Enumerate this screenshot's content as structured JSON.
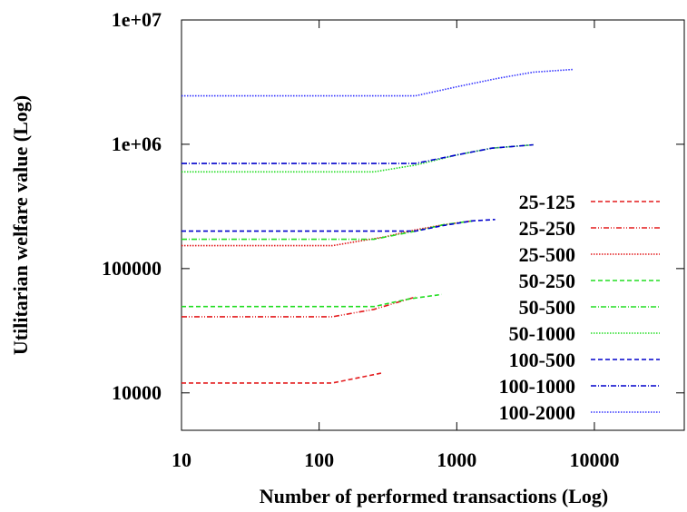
{
  "chart_data": {
    "type": "line",
    "title": "",
    "xlabel": "Number of performed transactions (Log)",
    "ylabel": "Utilitarian welfare value (Log)",
    "xscale": "log",
    "yscale": "log",
    "xlim": [
      10,
      45000
    ],
    "ylim": [
      5000,
      10000000
    ],
    "xticks": [
      10,
      100,
      1000,
      10000
    ],
    "xtick_labels": [
      "10",
      "100",
      "1000",
      "10000"
    ],
    "yticks": [
      10000,
      100000,
      1000000,
      10000000
    ],
    "ytick_labels": [
      "10000",
      "100000",
      "1e+06",
      "1e+07"
    ],
    "legend_position": "right",
    "grid": false,
    "series": [
      {
        "name": "25-125",
        "color": "#e31a1c",
        "dash": "5,3",
        "x": [
          10,
          125,
          290
        ],
        "y": [
          12000,
          12000,
          14500
        ]
      },
      {
        "name": "25-250",
        "color": "#e31a1c",
        "dash": "6,2,1,2,1,2",
        "x": [
          10,
          125,
          250,
          500
        ],
        "y": [
          41000,
          41000,
          47000,
          59000
        ]
      },
      {
        "name": "25-500",
        "color": "#e31a1c",
        "dash": "1.5,1.5",
        "x": [
          10,
          125,
          300,
          500,
          800,
          1300
        ],
        "y": [
          153000,
          153000,
          180000,
          205000,
          225000,
          242000
        ]
      },
      {
        "name": "50-250",
        "color": "#22dd22",
        "dash": "5,3",
        "x": [
          10,
          250,
          450,
          780
        ],
        "y": [
          49500,
          49500,
          57000,
          62000
        ]
      },
      {
        "name": "50-500",
        "color": "#22dd22",
        "dash": "6,2,1,2",
        "x": [
          10,
          250,
          500,
          800,
          1300
        ],
        "y": [
          172000,
          172000,
          200000,
          225000,
          242000
        ]
      },
      {
        "name": "50-1000",
        "color": "#22dd22",
        "dash": "1.5,1.5",
        "x": [
          10,
          250,
          500,
          1000,
          1800,
          3600
        ],
        "y": [
          600000,
          600000,
          680000,
          820000,
          930000,
          990000
        ]
      },
      {
        "name": "100-500",
        "color": "#0000cc",
        "dash": "5,3",
        "x": [
          10,
          500,
          800,
          1300,
          1900
        ],
        "y": [
          200000,
          200000,
          222000,
          242000,
          248000
        ]
      },
      {
        "name": "100-1000",
        "color": "#0000cc",
        "dash": "6,2,1,2",
        "x": [
          10,
          500,
          1000,
          1800,
          3600
        ],
        "y": [
          700000,
          700000,
          820000,
          930000,
          990000
        ]
      },
      {
        "name": "100-2000",
        "color": "#3333ff",
        "dash": "1.5,1.5",
        "x": [
          10,
          500,
          1000,
          2000,
          3600,
          7000
        ],
        "y": [
          2450000,
          2450000,
          2900000,
          3400000,
          3800000,
          4000000
        ]
      }
    ]
  }
}
